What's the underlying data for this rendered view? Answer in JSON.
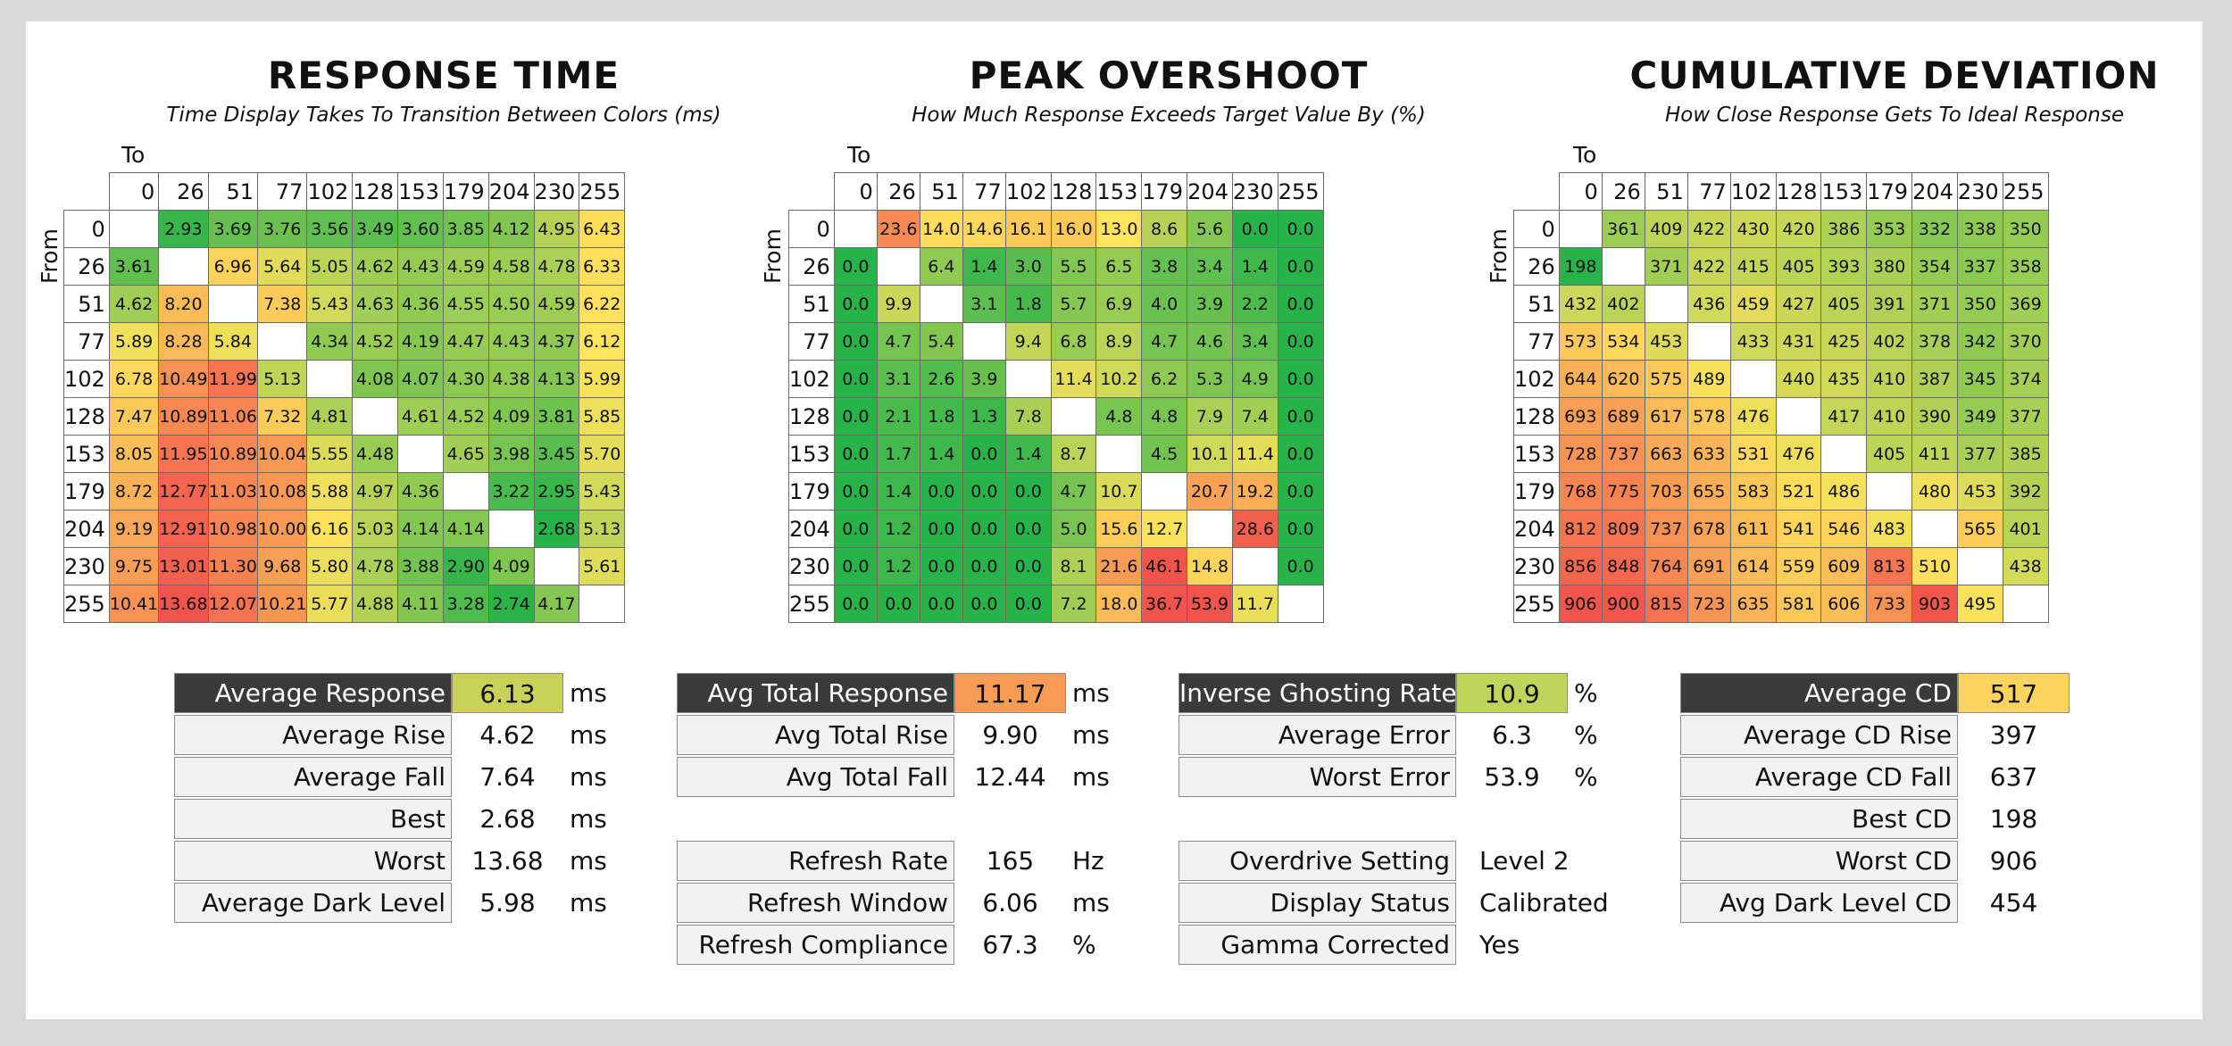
{
  "axis_labels": {
    "to": "To",
    "from": "From"
  },
  "chart_data": [
    {
      "type": "heatmap",
      "title": "RESPONSE TIME",
      "subtitle": "Time Display Takes To Transition Between Colors (ms)",
      "xlabel": "To",
      "ylabel": "From",
      "levels": [
        0,
        26,
        51,
        77,
        102,
        128,
        153,
        179,
        204,
        230,
        255
      ],
      "values": [
        [
          null,
          "2.93",
          "3.69",
          "3.76",
          "3.56",
          "3.49",
          "3.60",
          "3.85",
          "4.12",
          "4.95",
          "6.43"
        ],
        [
          "3.61",
          null,
          "6.96",
          "5.64",
          "5.05",
          "4.62",
          "4.43",
          "4.59",
          "4.58",
          "4.78",
          "6.33"
        ],
        [
          "4.62",
          "8.20",
          null,
          "7.38",
          "5.43",
          "4.63",
          "4.36",
          "4.55",
          "4.50",
          "4.59",
          "6.22"
        ],
        [
          "5.89",
          "8.28",
          "5.84",
          null,
          "4.34",
          "4.52",
          "4.19",
          "4.47",
          "4.43",
          "4.37",
          "6.12"
        ],
        [
          "6.78",
          "10.49",
          "11.99",
          "5.13",
          null,
          "4.08",
          "4.07",
          "4.30",
          "4.38",
          "4.13",
          "5.99"
        ],
        [
          "7.47",
          "10.89",
          "11.06",
          "7.32",
          "4.81",
          null,
          "4.61",
          "4.52",
          "4.09",
          "3.81",
          "5.85"
        ],
        [
          "8.05",
          "11.95",
          "10.89",
          "10.04",
          "5.55",
          "4.48",
          null,
          "4.65",
          "3.98",
          "3.45",
          "5.70"
        ],
        [
          "8.72",
          "12.77",
          "11.03",
          "10.08",
          "5.88",
          "4.97",
          "4.36",
          null,
          "3.22",
          "2.95",
          "5.43"
        ],
        [
          "9.19",
          "12.91",
          "10.98",
          "10.00",
          "6.16",
          "5.03",
          "4.14",
          "4.14",
          null,
          "2.68",
          "5.13"
        ],
        [
          "9.75",
          "13.01",
          "11.30",
          "9.68",
          "5.80",
          "4.78",
          "3.88",
          "2.90",
          "4.09",
          null,
          "5.61"
        ],
        [
          "10.41",
          "13.68",
          "12.07",
          "10.21",
          "5.77",
          "4.88",
          "4.11",
          "3.28",
          "2.74",
          "4.17",
          null
        ]
      ],
      "color_scale": {
        "low": "#27b24a",
        "mid": "#ffe35c",
        "high": "#f1544c",
        "min": 2.68,
        "mid_value": 6.13,
        "max": 13.68
      }
    },
    {
      "type": "heatmap",
      "title": "PEAK OVERSHOOT",
      "subtitle": "How Much Response Exceeds Target Value By (%)",
      "xlabel": "To",
      "ylabel": "From",
      "levels": [
        0,
        26,
        51,
        77,
        102,
        128,
        153,
        179,
        204,
        230,
        255
      ],
      "values": [
        [
          null,
          "23.6",
          "14.0",
          "14.6",
          "16.1",
          "16.0",
          "13.0",
          "8.6",
          "5.6",
          "0.0",
          "0.0"
        ],
        [
          "0.0",
          null,
          "6.4",
          "1.4",
          "3.0",
          "5.5",
          "6.5",
          "3.8",
          "3.4",
          "1.4",
          "0.0"
        ],
        [
          "0.0",
          "9.9",
          null,
          "3.1",
          "1.8",
          "5.7",
          "6.9",
          "4.0",
          "3.9",
          "2.2",
          "0.0"
        ],
        [
          "0.0",
          "4.7",
          "5.4",
          null,
          "9.4",
          "6.8",
          "8.9",
          "4.7",
          "4.6",
          "3.4",
          "0.0"
        ],
        [
          "0.0",
          "3.1",
          "2.6",
          "3.9",
          null,
          "11.4",
          "10.2",
          "6.2",
          "5.3",
          "4.9",
          "0.0"
        ],
        [
          "0.0",
          "2.1",
          "1.8",
          "1.3",
          "7.8",
          null,
          "4.8",
          "4.8",
          "7.9",
          "7.4",
          "0.0"
        ],
        [
          "0.0",
          "1.7",
          "1.4",
          "0.0",
          "1.4",
          "8.7",
          null,
          "4.5",
          "10.1",
          "11.4",
          "0.0"
        ],
        [
          "0.0",
          "1.4",
          "0.0",
          "0.0",
          "0.0",
          "4.7",
          "10.7",
          null,
          "20.7",
          "19.2",
          "0.0"
        ],
        [
          "0.0",
          "1.2",
          "0.0",
          "0.0",
          "0.0",
          "5.0",
          "15.6",
          "12.7",
          null,
          "28.6",
          "0.0"
        ],
        [
          "0.0",
          "1.2",
          "0.0",
          "0.0",
          "0.0",
          "8.1",
          "21.6",
          "46.1",
          "14.8",
          null,
          "0.0"
        ],
        [
          "0.0",
          "0.0",
          "0.0",
          "0.0",
          "0.0",
          "7.2",
          "18.0",
          "36.7",
          "53.9",
          "11.7",
          null
        ]
      ],
      "color_scale": {
        "low": "#27b24a",
        "mid": "#ffe35c",
        "high": "#f1544c",
        "min": 0,
        "mid_value": 13,
        "max": 30
      }
    },
    {
      "type": "heatmap",
      "title": "CUMULATIVE DEVIATION",
      "subtitle": "How Close Response Gets To Ideal Response",
      "xlabel": "To",
      "ylabel": "From",
      "levels": [
        0,
        26,
        51,
        77,
        102,
        128,
        153,
        179,
        204,
        230,
        255
      ],
      "values": [
        [
          null,
          "361",
          "409",
          "422",
          "430",
          "420",
          "386",
          "353",
          "332",
          "338",
          "350"
        ],
        [
          "198",
          null,
          "371",
          "422",
          "415",
          "405",
          "393",
          "380",
          "354",
          "337",
          "358"
        ],
        [
          "432",
          "402",
          null,
          "436",
          "459",
          "427",
          "405",
          "391",
          "371",
          "350",
          "369"
        ],
        [
          "573",
          "534",
          "453",
          null,
          "433",
          "431",
          "425",
          "402",
          "378",
          "342",
          "370"
        ],
        [
          "644",
          "620",
          "575",
          "489",
          null,
          "440",
          "435",
          "410",
          "387",
          "345",
          "374"
        ],
        [
          "693",
          "689",
          "617",
          "578",
          "476",
          null,
          "417",
          "410",
          "390",
          "349",
          "377"
        ],
        [
          "728",
          "737",
          "663",
          "633",
          "531",
          "476",
          null,
          "405",
          "411",
          "377",
          "385"
        ],
        [
          "768",
          "775",
          "703",
          "655",
          "583",
          "521",
          "486",
          null,
          "480",
          "453",
          "392"
        ],
        [
          "812",
          "809",
          "737",
          "678",
          "611",
          "541",
          "546",
          "483",
          null,
          "565",
          "401"
        ],
        [
          "856",
          "848",
          "764",
          "691",
          "614",
          "559",
          "609",
          "813",
          "510",
          null,
          "438"
        ],
        [
          "906",
          "900",
          "815",
          "723",
          "635",
          "581",
          "606",
          "733",
          "903",
          "495",
          null
        ]
      ],
      "color_scale": {
        "low": "#27b24a",
        "mid": "#ffe35c",
        "high": "#f1544c",
        "min": 198,
        "mid_value": 500,
        "max": 906
      }
    }
  ],
  "stats": {
    "response": {
      "head": {
        "label": "Average Response",
        "value": "6.13",
        "unit": "ms",
        "color": "#c9d158"
      },
      "rows": [
        {
          "label": "Average Rise",
          "value": "4.62",
          "unit": "ms"
        },
        {
          "label": "Average Fall",
          "value": "7.64",
          "unit": "ms"
        },
        {
          "label": "Best",
          "value": "2.68",
          "unit": "ms"
        },
        {
          "label": "Worst",
          "value": "13.68",
          "unit": "ms"
        },
        {
          "label": "Average Dark Level",
          "value": "5.98",
          "unit": "ms"
        }
      ]
    },
    "total": {
      "head": {
        "label": "Avg Total Response",
        "value": "11.17",
        "unit": "ms",
        "color": "#f79b57"
      },
      "rows": [
        {
          "label": "Avg Total Rise",
          "value": "9.90",
          "unit": "ms"
        },
        {
          "label": "Avg Total Fall",
          "value": "12.44",
          "unit": "ms"
        }
      ],
      "refresh": [
        {
          "label": "Refresh Rate",
          "value": "165",
          "unit": "Hz"
        },
        {
          "label": "Refresh Window",
          "value": "6.06",
          "unit": "ms"
        },
        {
          "label": "Refresh Compliance",
          "value": "67.3",
          "unit": "%"
        }
      ]
    },
    "overshoot": {
      "head": {
        "label": "Inverse Ghosting Rate",
        "value": "10.9",
        "unit": "%",
        "color": "#bfd55a"
      },
      "rows": [
        {
          "label": "Average Error",
          "value": "6.3",
          "unit": "%"
        },
        {
          "label": "Worst Error",
          "value": "53.9",
          "unit": "%"
        }
      ],
      "settings": [
        {
          "label": "Overdrive Setting",
          "value": "Level 2"
        },
        {
          "label": "Display Status",
          "value": "Calibrated"
        },
        {
          "label": "Gamma Corrected",
          "value": "Yes"
        }
      ]
    },
    "cd": {
      "head": {
        "label": "Average CD",
        "value": "517",
        "unit": "",
        "color": "#fcd35d"
      },
      "rows": [
        {
          "label": "Average CD Rise",
          "value": "397",
          "unit": ""
        },
        {
          "label": "Average CD Fall",
          "value": "637",
          "unit": ""
        },
        {
          "label": "Best CD",
          "value": "198",
          "unit": ""
        },
        {
          "label": "Worst CD",
          "value": "906",
          "unit": ""
        },
        {
          "label": "Avg Dark Level CD",
          "value": "454",
          "unit": ""
        }
      ]
    }
  }
}
